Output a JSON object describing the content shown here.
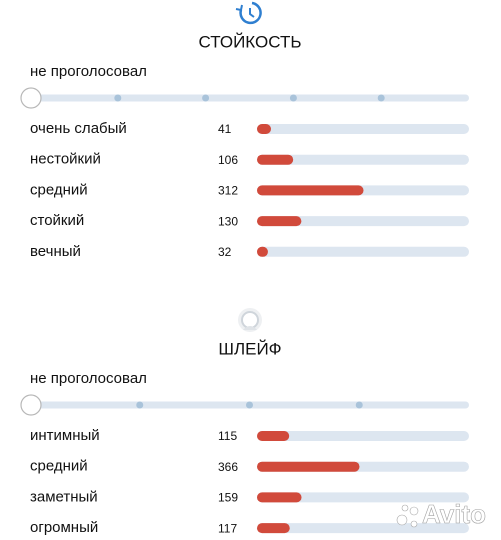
{
  "sections": [
    {
      "title": "СТОЙКОСТЬ",
      "status": "не проголосовал",
      "rows": [
        {
          "label": "очень слабый",
          "value": 41
        },
        {
          "label": "нестойкий",
          "value": 106
        },
        {
          "label": "средний",
          "value": 312
        },
        {
          "label": "стойкий",
          "value": 130
        },
        {
          "label": "вечный",
          "value": 32
        }
      ]
    },
    {
      "title": "ШЛЕЙФ",
      "status": "не проголосовал",
      "rows": [
        {
          "label": "интимный",
          "value": 115
        },
        {
          "label": "средний",
          "value": 366
        },
        {
          "label": "заметный",
          "value": 159
        },
        {
          "label": "огромный",
          "value": 117
        }
      ]
    }
  ],
  "watermark": "Avito"
}
